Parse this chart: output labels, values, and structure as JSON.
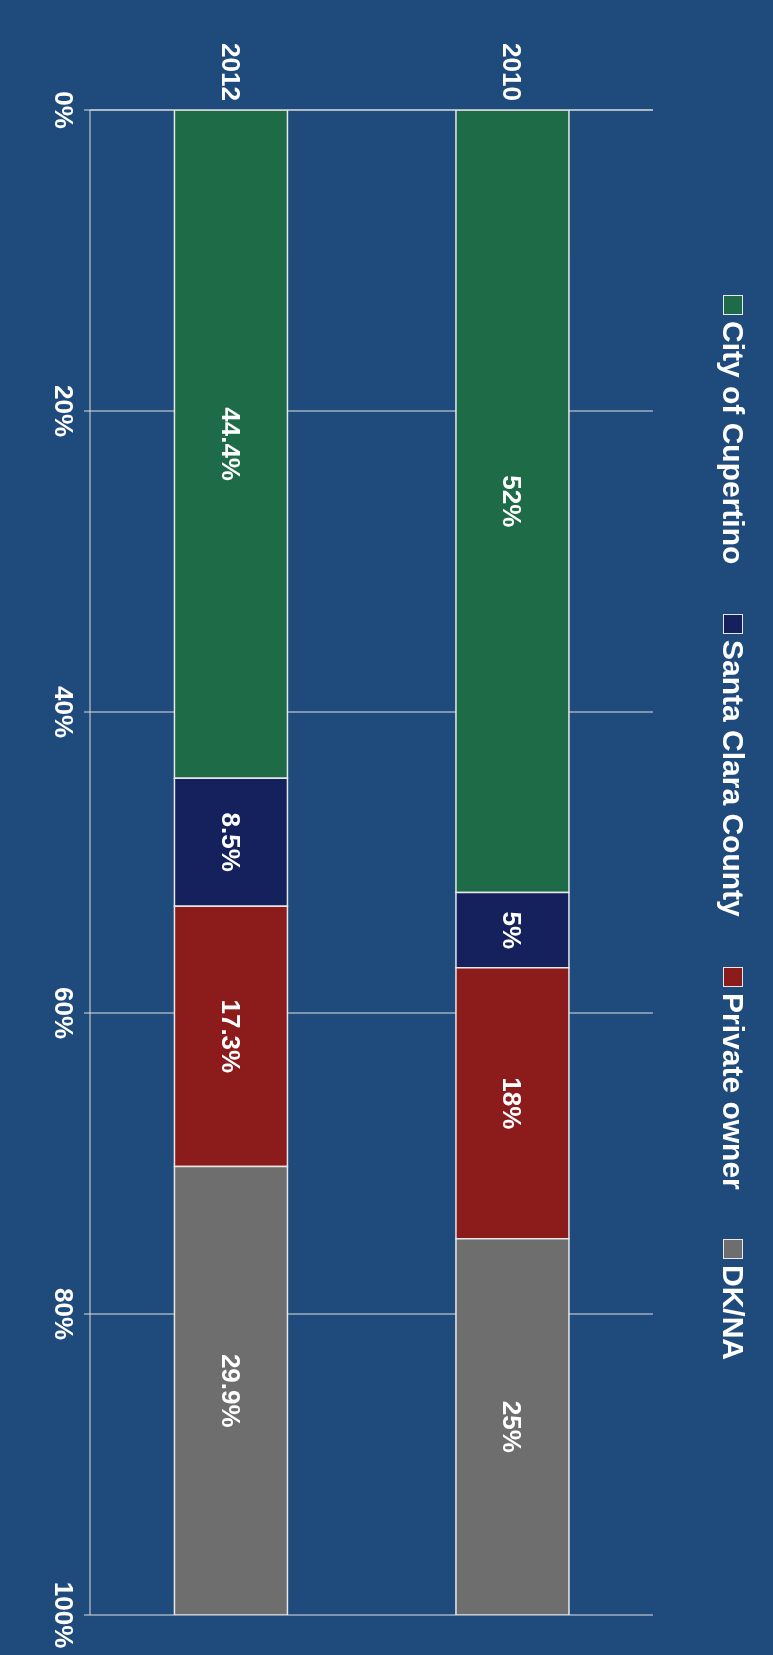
{
  "chart_data": {
    "type": "bar",
    "stacked": true,
    "categories": [
      "2012",
      "2010"
    ],
    "series": [
      {
        "name": "City of Cupertino",
        "color": "#1d6b47",
        "values": [
          44.4,
          52
        ],
        "value_labels": [
          "44.4%",
          "52%"
        ]
      },
      {
        "name": "Santa Clara County",
        "color": "#15215c",
        "values": [
          8.5,
          5
        ],
        "value_labels": [
          "8.5%",
          "5%"
        ]
      },
      {
        "name": "Private owner",
        "color": "#8c1c1c",
        "values": [
          17.3,
          18
        ],
        "value_labels": [
          "17.3%",
          "18%"
        ]
      },
      {
        "name": "DK/NA",
        "color": "#6e6e6e",
        "values": [
          29.9,
          25
        ],
        "value_labels": [
          "29.9%",
          "25%"
        ]
      }
    ],
    "ylim": [
      100,
      0
    ],
    "yticks": [
      {
        "value": 0,
        "label": "0%"
      },
      {
        "value": 20,
        "label": "20%"
      },
      {
        "value": 40,
        "label": "40%"
      },
      {
        "value": 60,
        "label": "60%"
      },
      {
        "value": 80,
        "label": "80%"
      },
      {
        "value": 100,
        "label": "100%"
      }
    ],
    "grid": "y",
    "legend": "right"
  }
}
